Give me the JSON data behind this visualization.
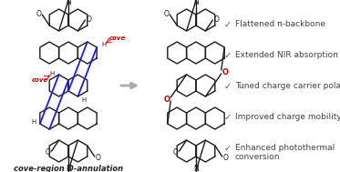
{
  "bg_color": "#ffffff",
  "checkmark_color": "#555555",
  "bullet_items": [
    "Flattened π-backbone",
    "Extended NIR absorption",
    "Tuned charge carrier polarity",
    "Improved charge mobility",
    "Enhanced photothermal\nconversion"
  ],
  "cove_label_color": "#cc0000",
  "blue_bond_color": "#1a1aff",
  "red_o_color": "#cc0000",
  "struct_line_color": "#1a1a1a",
  "figsize": [
    3.73,
    1.89
  ],
  "dpi": 100,
  "lc": "#1a1a1a",
  "arrow_color": "#aaaaaa",
  "text_color": "#444444"
}
